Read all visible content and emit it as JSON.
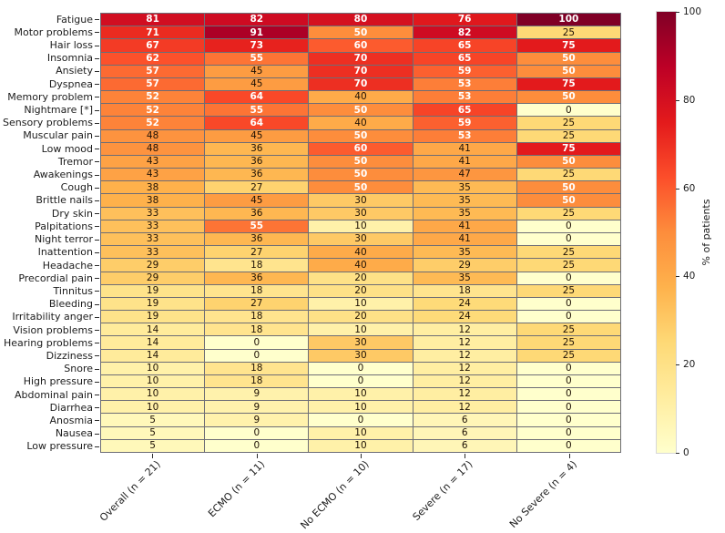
{
  "figure": {
    "background_color": "#ffffff",
    "grid_line_color": "#6d6d76",
    "tick_color": "#2b2b2b"
  },
  "chart_data": {
    "type": "heatmap",
    "title": "",
    "xlabel": "",
    "ylabel": "",
    "colormap_name": "YlOrRd",
    "colormap_stops": [
      "#ffffcc",
      "#ffeda0",
      "#fed976",
      "#feb24c",
      "#fd8d3c",
      "#fc4e2a",
      "#e31a1c",
      "#bd0026",
      "#800026"
    ],
    "value_min": 0,
    "value_max": 100,
    "annot_white_text_threshold": 50,
    "columns": [
      "Overall (n = 21)",
      "ECMO (n = 11)",
      "No ECMO (n = 10)",
      "Severe (n = 17)",
      "No Severe (n = 4)"
    ],
    "rows": [
      "Fatigue",
      "Motor problems",
      "Hair loss",
      "Insomnia",
      "Ansiety",
      "Dyspnea",
      "Memory problem",
      "Nightmare [*]",
      "Sensory problems",
      "Muscular pain",
      "Low mood",
      "Tremor",
      "Awakenings",
      "Cough",
      "Brittle nails",
      "Dry skin",
      "Palpitations",
      "Night terror",
      "Inattention",
      "Headache",
      "Precordial pain",
      "Tinnitus",
      "Bleeding",
      "Irritability anger",
      "Vision problems",
      "Hearing problems",
      "Dizziness",
      "Snore",
      "High pressure",
      "Abdominal pain",
      "Diarrhea",
      "Anosmia",
      "Nausea",
      "Low pressure"
    ],
    "values": [
      [
        81,
        82,
        80,
        76,
        100
      ],
      [
        71,
        91,
        50,
        82,
        25
      ],
      [
        67,
        73,
        60,
        65,
        75
      ],
      [
        62,
        55,
        70,
        65,
        50
      ],
      [
        57,
        45,
        70,
        59,
        50
      ],
      [
        57,
        45,
        70,
        53,
        75
      ],
      [
        52,
        64,
        40,
        53,
        50
      ],
      [
        52,
        55,
        50,
        65,
        0
      ],
      [
        52,
        64,
        40,
        59,
        25
      ],
      [
        48,
        45,
        50,
        53,
        25
      ],
      [
        48,
        36,
        60,
        41,
        75
      ],
      [
        43,
        36,
        50,
        41,
        50
      ],
      [
        43,
        36,
        50,
        47,
        25
      ],
      [
        38,
        27,
        50,
        35,
        50
      ],
      [
        38,
        45,
        30,
        35,
        50
      ],
      [
        33,
        36,
        30,
        35,
        25
      ],
      [
        33,
        55,
        10,
        41,
        0
      ],
      [
        33,
        36,
        30,
        41,
        0
      ],
      [
        33,
        27,
        40,
        35,
        25
      ],
      [
        29,
        18,
        40,
        29,
        25
      ],
      [
        29,
        36,
        20,
        35,
        0
      ],
      [
        19,
        18,
        20,
        18,
        25
      ],
      [
        19,
        27,
        10,
        24,
        0
      ],
      [
        19,
        18,
        20,
        24,
        0
      ],
      [
        14,
        18,
        10,
        12,
        25
      ],
      [
        14,
        0,
        30,
        12,
        25
      ],
      [
        14,
        0,
        30,
        12,
        25
      ],
      [
        10,
        18,
        0,
        12,
        0
      ],
      [
        10,
        18,
        0,
        12,
        0
      ],
      [
        10,
        9,
        10,
        12,
        0
      ],
      [
        10,
        9,
        10,
        12,
        0
      ],
      [
        5,
        9,
        0,
        6,
        0
      ],
      [
        5,
        0,
        10,
        6,
        0
      ],
      [
        5,
        0,
        10,
        6,
        0
      ]
    ],
    "colorbar": {
      "label": "% of patients",
      "ticks": [
        0,
        20,
        40,
        60,
        80,
        100
      ],
      "min": 0,
      "max": 100,
      "position": "right"
    },
    "layout_hints": {
      "x_tick_label_rotation": 45,
      "annotations": "on",
      "legend": "colorbar-right"
    }
  }
}
